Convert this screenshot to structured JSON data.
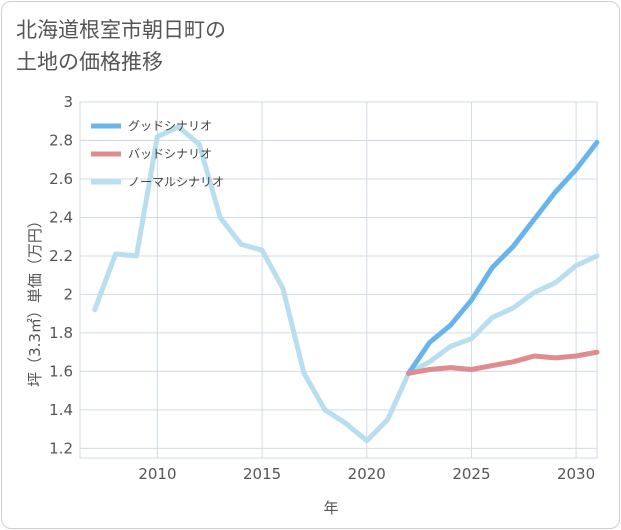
{
  "title": "北海道根室市朝日町の\n土地の価格推移",
  "chart_data": {
    "type": "line",
    "xlabel": "年",
    "ylabel": "坪（3.3㎡）単価（万円）",
    "xlim": [
      2006.3,
      2031
    ],
    "ylim": [
      1.15,
      3
    ],
    "xticks": [
      2010,
      2015,
      2020,
      2025,
      2030
    ],
    "yticks": [
      1.2,
      1.4,
      1.6,
      1.8,
      2,
      2.2,
      2.4,
      2.6,
      2.8,
      3
    ],
    "grid": true,
    "legend_position": "top-left",
    "series": [
      {
        "name": "グッドシナリオ",
        "color": "#6ab4ee",
        "x": [
          2022,
          2023,
          2024,
          2025,
          2026,
          2027,
          2028,
          2029,
          2030,
          2031
        ],
        "y": [
          1.59,
          1.75,
          1.84,
          1.97,
          2.14,
          2.25,
          2.39,
          2.53,
          2.65,
          2.79
        ]
      },
      {
        "name": "バッドシナリオ",
        "color": "#e08b8f",
        "x": [
          2022,
          2023,
          2024,
          2025,
          2026,
          2027,
          2028,
          2029,
          2030,
          2031
        ],
        "y": [
          1.59,
          1.61,
          1.62,
          1.61,
          1.63,
          1.65,
          1.68,
          1.67,
          1.68,
          1.7
        ]
      },
      {
        "name": "ノーマルシナリオ",
        "color": "#b8def0",
        "x": [
          2007,
          2008,
          2009,
          2010,
          2011,
          2012,
          2013,
          2014,
          2015,
          2016,
          2017,
          2018,
          2019,
          2020,
          2021,
          2022,
          2023,
          2024,
          2025,
          2026,
          2027,
          2028,
          2029,
          2030,
          2031
        ],
        "y": [
          1.92,
          2.21,
          2.2,
          2.82,
          2.87,
          2.78,
          2.4,
          2.26,
          2.23,
          2.03,
          1.59,
          1.4,
          1.33,
          1.24,
          1.35,
          1.59,
          1.65,
          1.73,
          1.77,
          1.88,
          1.93,
          2.01,
          2.06,
          2.15,
          2.2
        ]
      }
    ]
  }
}
